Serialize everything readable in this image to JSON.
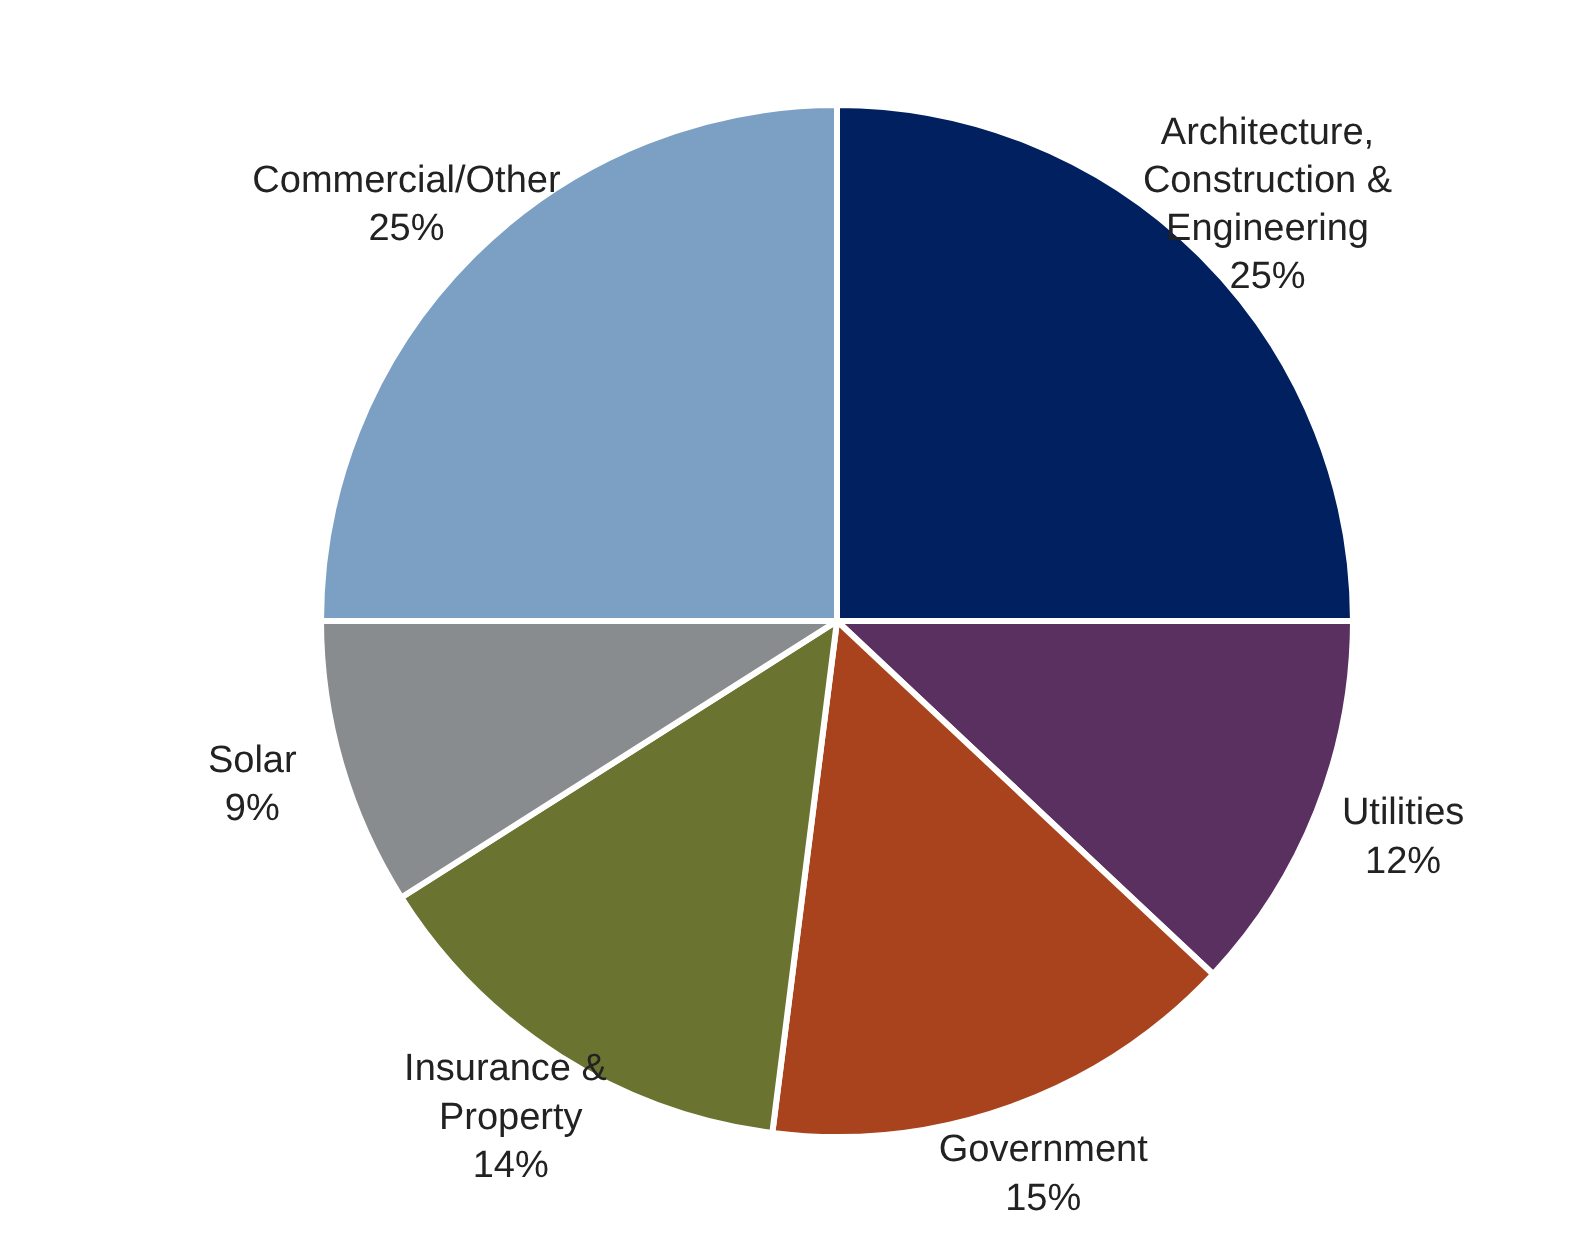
{
  "chart_data": {
    "type": "pie",
    "categories": [
      "Architecture,\nConstruction &\nEngineering",
      "Utilities",
      "Government",
      "Insurance  &\nProperty",
      "Solar",
      "Commercial/Other"
    ],
    "values": [
      25,
      12,
      15,
      14,
      9,
      25
    ],
    "colors": [
      "#002060",
      "#5a3060",
      "#a8431e",
      "#6b7330",
      "#898c8e",
      "#7ba0c4"
    ],
    "value_labels": [
      "25%",
      "12%",
      "15%",
      "14%",
      "9%",
      "25%"
    ]
  }
}
